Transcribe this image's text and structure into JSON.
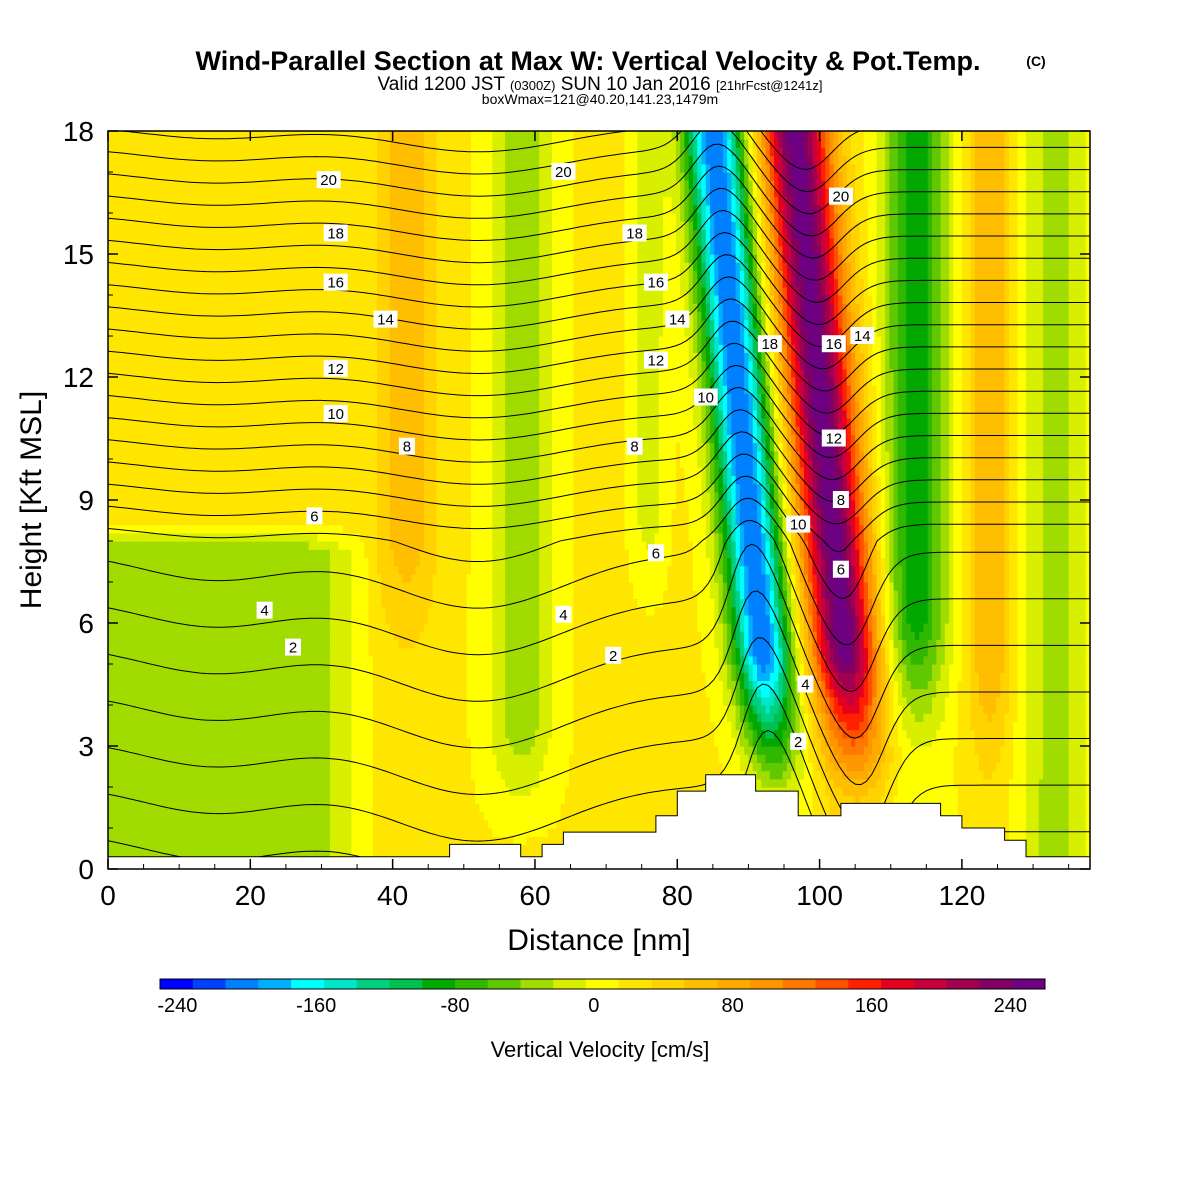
{
  "chart_data": {
    "type": "heatmap",
    "title": "Wind-Parallel Section at Max W: Vertical Velocity & Pot.Temp.",
    "title_mark": "(C)",
    "subtitle_parts": [
      "Valid 1200 JST",
      "(0300Z)",
      "SUN 10 Jan 2016",
      "[21hrFcst@1241z]"
    ],
    "subtitle2": "boxWmax=121@40.20,141.23,1479m",
    "xlabel": "Distance [nm]",
    "ylabel": "Height [Kft MSL]",
    "xlim": [
      0,
      138
    ],
    "ylim": [
      0,
      18
    ],
    "x_ticks": [
      "0",
      "20",
      "40",
      "60",
      "80",
      "100",
      "120"
    ],
    "y_ticks": [
      "0",
      "3",
      "6",
      "9",
      "12",
      "15",
      "18"
    ],
    "colorbar": {
      "label": "Vertical Velocity [cm/s]",
      "range": [
        -250,
        260
      ],
      "tick_labels": [
        "-240",
        "-160",
        "-80",
        "0",
        "80",
        "160",
        "240"
      ],
      "colors": [
        "#0000ff",
        "#0040ff",
        "#0080ff",
        "#00b0ff",
        "#00ffff",
        "#00e6c8",
        "#00d080",
        "#00c050",
        "#00a800",
        "#30b800",
        "#60c800",
        "#a0dc00",
        "#d8f000",
        "#ffff00",
        "#ffe600",
        "#ffd200",
        "#ffbe00",
        "#ffaa00",
        "#ff9600",
        "#ff7800",
        "#ff5000",
        "#ff2000",
        "#e6001e",
        "#c8003c",
        "#a00050",
        "#800064",
        "#6e0082"
      ]
    },
    "terrain_kft": [
      [
        0,
        0.3
      ],
      [
        48,
        0.3
      ],
      [
        48,
        0.6
      ],
      [
        58,
        0.6
      ],
      [
        58,
        0.3
      ],
      [
        61,
        0.3
      ],
      [
        61,
        0.6
      ],
      [
        64,
        0.6
      ],
      [
        64,
        0.9
      ],
      [
        77,
        0.9
      ],
      [
        77,
        1.3
      ],
      [
        80,
        1.3
      ],
      [
        80,
        1.9
      ],
      [
        84,
        1.9
      ],
      [
        84,
        2.3
      ],
      [
        91,
        2.3
      ],
      [
        91,
        1.9
      ],
      [
        97,
        1.9
      ],
      [
        97,
        1.3
      ],
      [
        103,
        1.3
      ],
      [
        103,
        1.6
      ],
      [
        117,
        1.6
      ],
      [
        117,
        1.3
      ],
      [
        120,
        1.3
      ],
      [
        120,
        1.0
      ],
      [
        126,
        1.0
      ],
      [
        126,
        0.7
      ],
      [
        129,
        0.7
      ],
      [
        129,
        0.3
      ],
      [
        138,
        0.3
      ]
    ],
    "theta_labels": [
      {
        "text": "20",
        "x": 31,
        "y": 16.8
      },
      {
        "text": "18",
        "x": 32,
        "y": 15.5
      },
      {
        "text": "16",
        "x": 32,
        "y": 14.3
      },
      {
        "text": "14",
        "x": 39,
        "y": 13.4
      },
      {
        "text": "12",
        "x": 32,
        "y": 12.2
      },
      {
        "text": "10",
        "x": 32,
        "y": 11.1
      },
      {
        "text": "8",
        "x": 42,
        "y": 10.3
      },
      {
        "text": "6",
        "x": 29,
        "y": 8.6
      },
      {
        "text": "4",
        "x": 22,
        "y": 6.3
      },
      {
        "text": "2",
        "x": 26,
        "y": 5.4
      },
      {
        "text": "20",
        "x": 64,
        "y": 17.0
      },
      {
        "text": "18",
        "x": 74,
        "y": 15.5
      },
      {
        "text": "16",
        "x": 77,
        "y": 14.3
      },
      {
        "text": "14",
        "x": 80,
        "y": 13.4
      },
      {
        "text": "12",
        "x": 77,
        "y": 12.4
      },
      {
        "text": "10",
        "x": 84,
        "y": 11.5
      },
      {
        "text": "8",
        "x": 74,
        "y": 10.3
      },
      {
        "text": "6",
        "x": 77,
        "y": 7.7
      },
      {
        "text": "4",
        "x": 64,
        "y": 6.2
      },
      {
        "text": "2",
        "x": 71,
        "y": 5.2
      },
      {
        "text": "18",
        "x": 93,
        "y": 12.8
      },
      {
        "text": "16",
        "x": 102,
        "y": 12.8
      },
      {
        "text": "14",
        "x": 106,
        "y": 13.0
      },
      {
        "text": "20",
        "x": 103,
        "y": 16.4
      },
      {
        "text": "12",
        "x": 102,
        "y": 10.5
      },
      {
        "text": "10",
        "x": 97,
        "y": 8.4
      },
      {
        "text": "8",
        "x": 103,
        "y": 9.0
      },
      {
        "text": "6",
        "x": 103,
        "y": 7.3
      },
      {
        "text": "4",
        "x": 98,
        "y": 4.5
      },
      {
        "text": "2",
        "x": 97,
        "y": 3.1
      }
    ]
  }
}
